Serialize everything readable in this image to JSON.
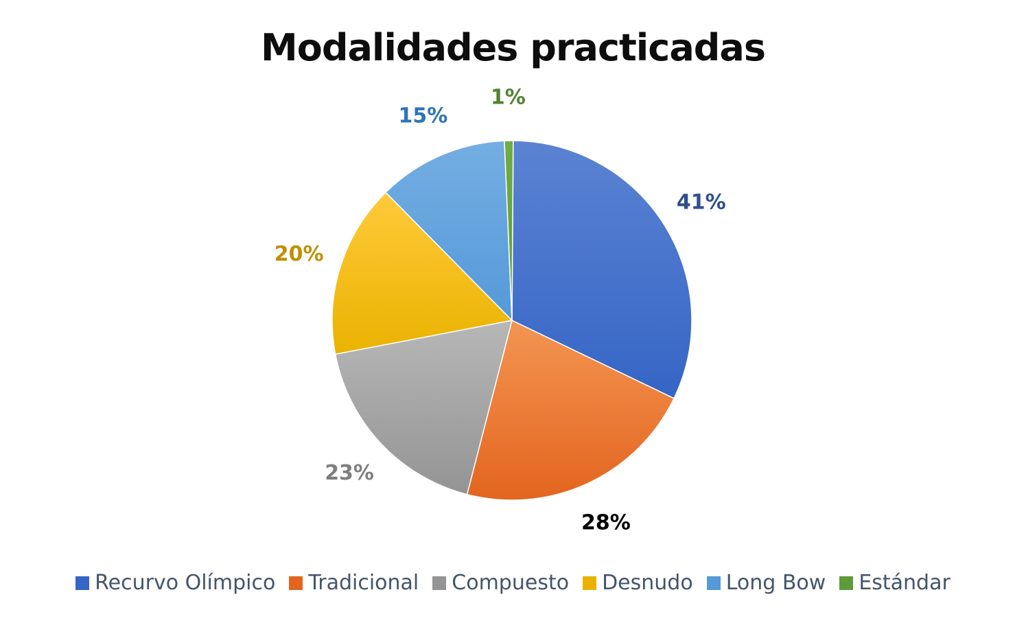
{
  "chart_data": {
    "type": "pie",
    "title": "Modalidades practicadas",
    "slices": [
      {
        "label": "Recurvo Olímpico",
        "value": 41,
        "display": "41%",
        "color_top": "#5b83d3",
        "color_bottom": "#3565c5",
        "label_color": "#2e4f8f"
      },
      {
        "label": "Tradicional",
        "value": 28,
        "display": "28%",
        "color_top": "#f39552",
        "color_bottom": "#e3651f",
        "label_color": "#000000"
      },
      {
        "label": "Compuesto",
        "value": 23,
        "display": "23%",
        "color_top": "#b7b7b7",
        "color_bottom": "#949494",
        "label_color": "#7f7f7f"
      },
      {
        "label": "Desnudo",
        "value": 20,
        "display": "20%",
        "color_top": "#ffca3a",
        "color_bottom": "#eab200",
        "label_color": "#c09000"
      },
      {
        "label": "Long Bow",
        "value": 15,
        "display": "15%",
        "color_top": "#74aee2",
        "color_bottom": "#5599d9",
        "label_color": "#2e75b6"
      },
      {
        "label": "Estándar",
        "value": 1,
        "display": "1%",
        "color_top": "#70ad47",
        "color_bottom": "#5f9a3a",
        "label_color": "#548235"
      }
    ],
    "legend_position": "bottom"
  }
}
